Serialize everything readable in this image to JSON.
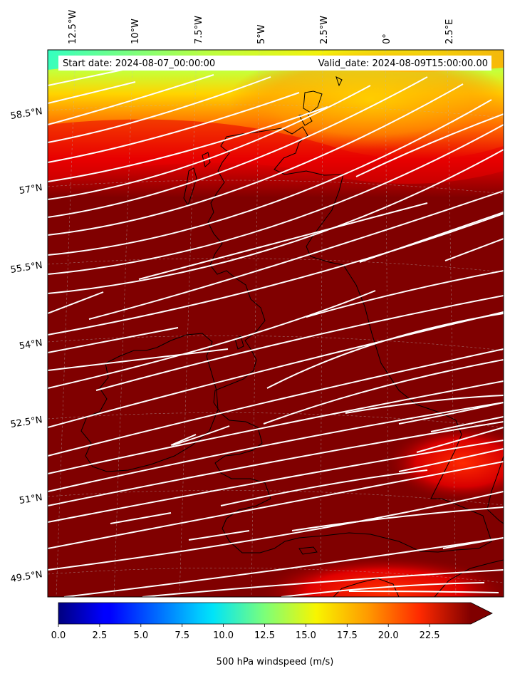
{
  "map": {
    "start_date_text": "Start date: 2024-08-07_00:00:00",
    "valid_date_text": "Valid_date: 2024-08-09T15:00:00.00",
    "longitude_labels": [
      "12.5°W",
      "10°W",
      "7.5°W",
      "5°W",
      "2.5°W",
      "0°",
      "2.5°E"
    ],
    "latitude_labels": [
      "58.5°N",
      "57°N",
      "55.5°N",
      "54°N",
      "52.5°N",
      "51°N",
      "49.5°N"
    ],
    "field": "500 hPa windspeed",
    "units": "m/s"
  },
  "colorbar": {
    "label": "500 hPa windspeed (m/s)",
    "ticks": [
      "0.0",
      "2.5",
      "5.0",
      "7.5",
      "10.0",
      "12.5",
      "15.0",
      "17.5",
      "20.0",
      "22.5"
    ],
    "min": 0,
    "max": 25,
    "extend": "max",
    "colormap": "jet"
  },
  "colors": {
    "dominant_field": "#800000",
    "coastline": "#000000",
    "streamlines": "#ffffff"
  }
}
